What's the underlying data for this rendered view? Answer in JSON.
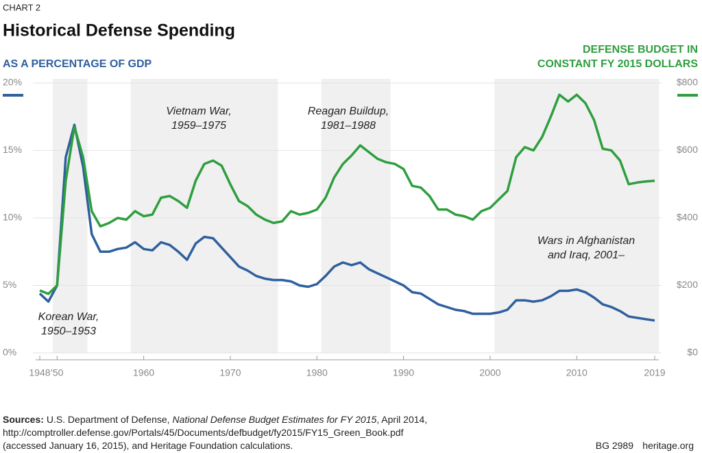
{
  "chart_data": {
    "type": "line",
    "kicker": "CHART 2",
    "title": "Historical Defense Spending",
    "ylabel": "AS A PERCENTAGE OF GDP",
    "y2label": [
      "DEFENSE BUDGET IN",
      "CONSTANT FY 2015 DOLLARS"
    ],
    "x": [
      1948,
      1949,
      1950,
      1951,
      1952,
      1953,
      1954,
      1955,
      1956,
      1957,
      1958,
      1959,
      1960,
      1961,
      1962,
      1963,
      1964,
      1965,
      1966,
      1967,
      1968,
      1969,
      1970,
      1971,
      1972,
      1973,
      1974,
      1975,
      1976,
      1977,
      1978,
      1979,
      1980,
      1981,
      1982,
      1983,
      1984,
      1985,
      1986,
      1987,
      1988,
      1989,
      1990,
      1991,
      1992,
      1993,
      1994,
      1995,
      1996,
      1997,
      1998,
      1999,
      2000,
      2001,
      2002,
      2003,
      2004,
      2005,
      2006,
      2007,
      2008,
      2009,
      2010,
      2011,
      2012,
      2013,
      2014,
      2015,
      2016,
      2017,
      2018,
      2019
    ],
    "series": [
      {
        "name": "AS A PERCENTAGE OF GDP",
        "color": "#2e5f9e",
        "axis": "y",
        "values": [
          4.4,
          3.8,
          5.0,
          14.5,
          16.9,
          13.8,
          8.8,
          7.5,
          7.5,
          7.7,
          7.8,
          8.2,
          7.7,
          7.6,
          8.2,
          8.0,
          7.5,
          6.9,
          8.1,
          8.6,
          8.5,
          7.8,
          7.1,
          6.4,
          6.1,
          5.7,
          5.5,
          5.4,
          5.4,
          5.3,
          5.0,
          4.9,
          5.1,
          5.7,
          6.4,
          6.7,
          6.5,
          6.7,
          6.2,
          5.9,
          5.6,
          5.3,
          5.0,
          4.5,
          4.4,
          4.0,
          3.6,
          3.4,
          3.2,
          3.1,
          2.9,
          2.9,
          2.9,
          3.0,
          3.2,
          3.9,
          3.9,
          3.8,
          3.9,
          4.2,
          4.6,
          4.6,
          4.7,
          4.5,
          4.1,
          3.6,
          3.4,
          3.1,
          2.7,
          2.6,
          2.5,
          2.4
        ]
      },
      {
        "name": "DEFENSE BUDGET IN CONSTANT FY 2015 DOLLARS",
        "color": "#2e9e3e",
        "axis": "y2",
        "values": [
          185,
          175,
          200,
          510,
          670,
          580,
          420,
          375,
          385,
          400,
          395,
          420,
          405,
          410,
          460,
          465,
          450,
          430,
          510,
          560,
          570,
          555,
          500,
          450,
          435,
          410,
          395,
          385,
          390,
          420,
          410,
          415,
          425,
          460,
          520,
          560,
          585,
          615,
          595,
          575,
          565,
          560,
          545,
          495,
          490,
          465,
          425,
          425,
          410,
          405,
          395,
          420,
          430,
          455,
          480,
          580,
          610,
          600,
          640,
          700,
          765,
          745,
          765,
          740,
          690,
          605,
          600,
          570,
          500,
          505,
          508,
          510
        ]
      }
    ],
    "xlim": [
      1948,
      2019
    ],
    "xticks": [
      1948,
      {
        "value": 1950,
        "label": "'50"
      },
      1960,
      1970,
      1980,
      1990,
      2000,
      2010,
      2019
    ],
    "ylim": [
      0,
      20
    ],
    "yticks": [
      {
        "value": 0,
        "label": "0%"
      },
      {
        "value": 5,
        "label": "5%"
      },
      {
        "value": 10,
        "label": "10%"
      },
      {
        "value": 15,
        "label": "15%"
      },
      {
        "value": 20,
        "label": "20%"
      }
    ],
    "y2lim": [
      0,
      800
    ],
    "y2ticks": [
      {
        "value": 0,
        "label": "$0"
      },
      {
        "value": 200,
        "label": "$200"
      },
      {
        "value": 400,
        "label": "$400"
      },
      {
        "value": 600,
        "label": "$600"
      },
      {
        "value": 800,
        "label": "$800"
      }
    ],
    "grid": true,
    "shaded_periods": [
      {
        "start": 1950,
        "end": 1953,
        "label": [
          "Korean War,",
          "1950–1953"
        ]
      },
      {
        "start": 1959,
        "end": 1975,
        "label": [
          "Vietnam War,",
          "1959–1975"
        ]
      },
      {
        "start": 1981,
        "end": 1988,
        "label": [
          "Reagan Buildup,",
          "1981–1988"
        ]
      },
      {
        "start": 2001,
        "end": 2019,
        "label": [
          "Wars in Afghanistan",
          "and Iraq, 2001–"
        ]
      }
    ],
    "sources": {
      "label": "Sources:",
      "text_1": "U.S. Department of Defense,",
      "publication": "National Defense Budget Estimates for FY 2015",
      "text_2": ", April 2014,",
      "line_2": "http://comptroller.defense.gov/Portals/45/Documents/defbudget/fy2015/FY15_Green_Book.pdf",
      "line_3": "(accessed January 16, 2015), and Heritage Foundation calculations."
    },
    "report_id": "BG 2989",
    "site": "heritage.org"
  }
}
